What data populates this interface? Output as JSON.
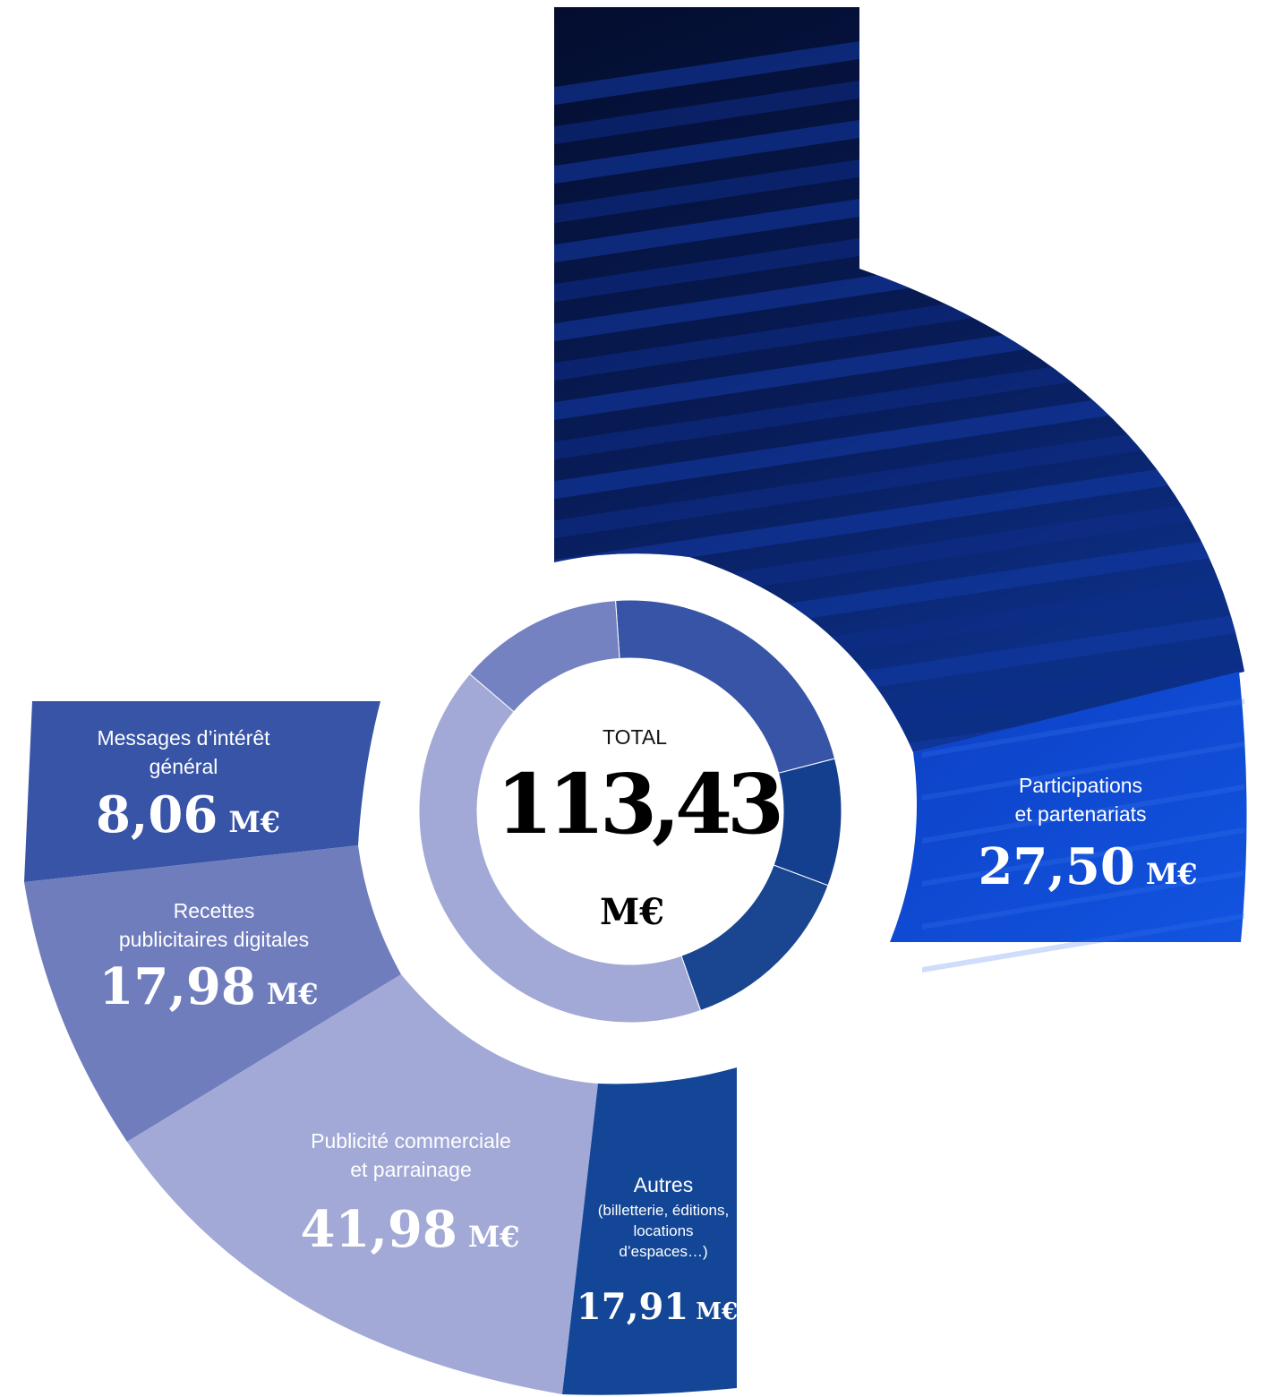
{
  "chart_data": {
    "type": "pie",
    "total": {
      "label": "TOTAL",
      "value": "113,43",
      "unit": "M€"
    },
    "slices": [
      {
        "key": "participations",
        "label_lines": [
          "Participations",
          "et partenariats"
        ],
        "sub_lines": [],
        "value": 27.5,
        "display": "27,50",
        "unit": "M€",
        "color": "#3754a6"
      },
      {
        "key": "messages",
        "label_lines": [
          "Messages d’intérêt",
          "général"
        ],
        "sub_lines": [],
        "value": 8.06,
        "display": "8,06",
        "unit": "M€",
        "color": "#3754a6"
      },
      {
        "key": "recettes",
        "label_lines": [
          "Recettes",
          "publicitaires digitales"
        ],
        "sub_lines": [],
        "value": 17.98,
        "display": "17,98",
        "unit": "M€",
        "color": "#6f7dbd"
      },
      {
        "key": "publicite",
        "label_lines": [
          "Publicité commerciale",
          "et parrainage"
        ],
        "sub_lines": [],
        "value": 41.98,
        "display": "41,98",
        "unit": "M€",
        "color": "#a2a9d6"
      },
      {
        "key": "autres",
        "label_lines": [
          "Autres"
        ],
        "sub_lines": [
          "(billetterie, éditions,",
          "locations",
          "d’espaces…)"
        ],
        "value": 17.91,
        "display": "17,91",
        "unit": "M€",
        "color": "#134696"
      }
    ],
    "inner_ring": [
      {
        "value": 17.5,
        "color": "#3754a6"
      },
      {
        "value": 7.7,
        "color": "#133f8e"
      },
      {
        "value": 11.0,
        "color": "#1a4590"
      },
      {
        "value": 33.0,
        "color": "#a2a9d6"
      },
      {
        "value": 10.0,
        "color": "#7582c2"
      }
    ],
    "colors": {
      "photo_dark": "#071a52",
      "photo_bright": "#0f47d6",
      "background": "#ffffff"
    }
  }
}
